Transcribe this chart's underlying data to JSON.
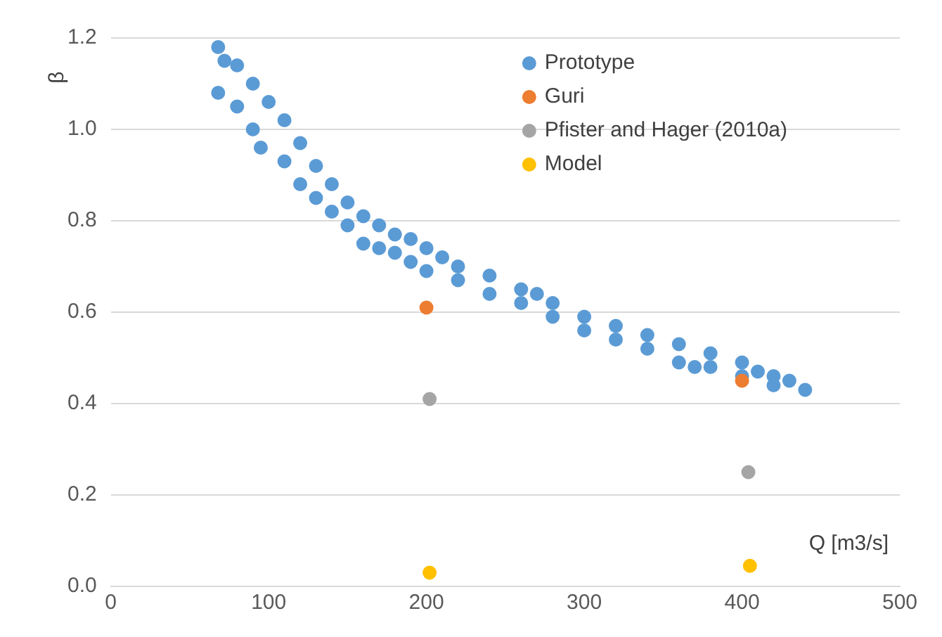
{
  "chart_data": {
    "type": "scatter",
    "xlabel": "Q [m3/s]",
    "ylabel": "β",
    "xlim": [
      0,
      500
    ],
    "xticks": [
      0,
      100,
      200,
      300,
      400,
      500
    ],
    "ylim": [
      0,
      1.2
    ],
    "yticks": [
      {
        "value": 0,
        "label": "0.0"
      },
      {
        "value": 0.2,
        "label": "0.2"
      },
      {
        "value": 0.4,
        "label": "0.4"
      },
      {
        "value": 0.6,
        "label": "0.6"
      },
      {
        "value": 0.8,
        "label": "0.8"
      },
      {
        "value": 1,
        "label": "1.0"
      },
      {
        "value": 1.2,
        "label": "1.2"
      }
    ],
    "grid": "y",
    "legend": "top right",
    "marker": "circle",
    "series": [
      {
        "name": "Prototype",
        "color": "#5b9bd5",
        "x": [
          68,
          68,
          72,
          80,
          80,
          90,
          90,
          95,
          100,
          110,
          110,
          120,
          120,
          130,
          130,
          140,
          140,
          150,
          150,
          160,
          160,
          170,
          170,
          180,
          180,
          190,
          190,
          200,
          200,
          210,
          220,
          220,
          240,
          240,
          260,
          260,
          270,
          280,
          280,
          300,
          300,
          320,
          320,
          340,
          340,
          360,
          360,
          370,
          380,
          380,
          400,
          400,
          410,
          420,
          420,
          430,
          440
        ],
        "values": [
          1.18,
          1.08,
          1.15,
          1.14,
          1.05,
          1.1,
          1.0,
          0.96,
          1.06,
          1.02,
          0.93,
          0.97,
          0.88,
          0.92,
          0.85,
          0.88,
          0.82,
          0.84,
          0.79,
          0.81,
          0.75,
          0.79,
          0.74,
          0.77,
          0.73,
          0.76,
          0.71,
          0.74,
          0.69,
          0.72,
          0.7,
          0.67,
          0.68,
          0.64,
          0.65,
          0.62,
          0.64,
          0.62,
          0.59,
          0.59,
          0.56,
          0.57,
          0.54,
          0.55,
          0.52,
          0.53,
          0.49,
          0.48,
          0.51,
          0.48,
          0.49,
          0.46,
          0.47,
          0.46,
          0.44,
          0.45,
          0.43
        ]
      },
      {
        "name": "Guri",
        "color": "#ed7d31",
        "x": [
          200,
          400
        ],
        "values": [
          0.61,
          0.45
        ]
      },
      {
        "name": "Pfister and Hager (2010a)",
        "color": "#a5a5a5",
        "x": [
          202,
          404
        ],
        "values": [
          0.41,
          0.25
        ]
      },
      {
        "name": "Model",
        "color": "#ffc000",
        "x": [
          202,
          405
        ],
        "values": [
          0.03,
          0.045
        ]
      }
    ]
  }
}
